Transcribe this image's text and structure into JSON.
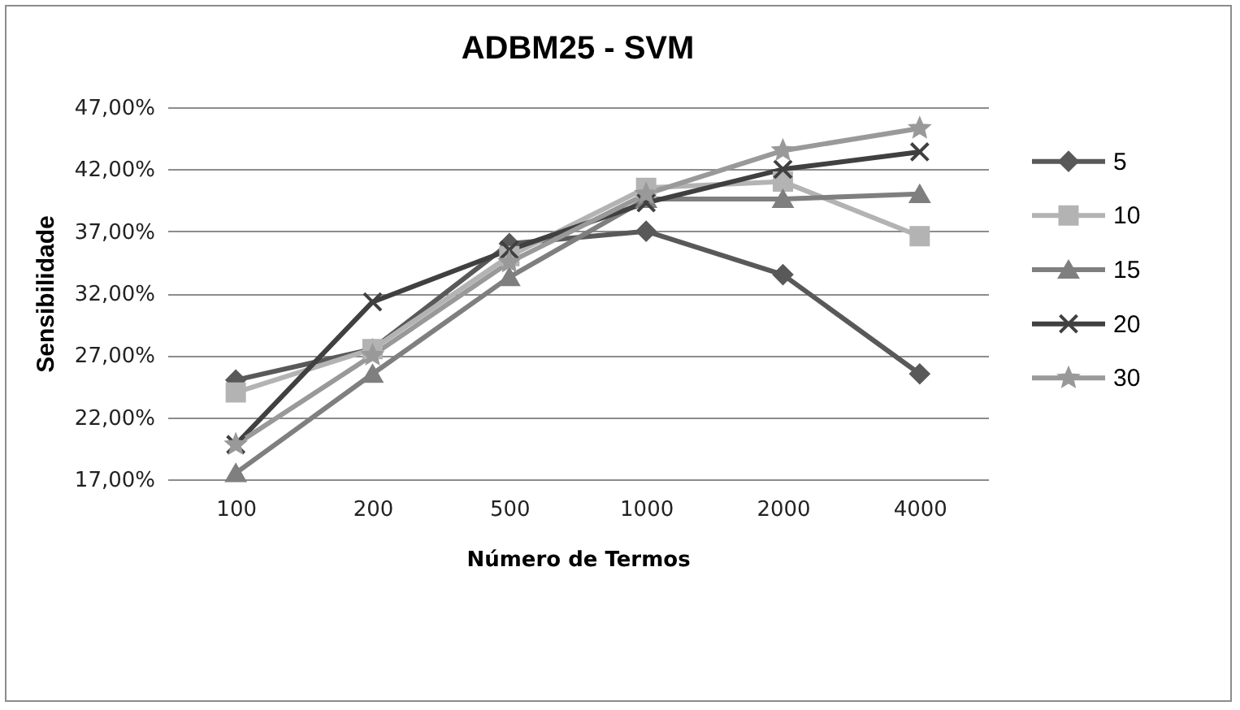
{
  "chart_data": {
    "type": "line",
    "title": "ADBM25 - SVM",
    "xlabel": "Número de Termos",
    "ylabel": "Sensibilidade",
    "categories": [
      "100",
      "200",
      "500",
      "1000",
      "2000",
      "4000"
    ],
    "series": [
      {
        "name": "5",
        "color": "#595959",
        "marker": "diamond",
        "values": [
          25.0,
          27.5,
          36.0,
          37.0,
          33.5,
          25.5
        ]
      },
      {
        "name": "10",
        "color": "#b3b3b3",
        "marker": "square",
        "values": [
          24.0,
          27.5,
          35.0,
          40.5,
          41.0,
          36.6
        ]
      },
      {
        "name": "15",
        "color": "#7f7f7f",
        "marker": "triangle",
        "values": [
          17.5,
          25.5,
          33.3,
          39.6,
          39.6,
          40.0
        ]
      },
      {
        "name": "20",
        "color": "#404040",
        "marker": "cross",
        "values": [
          19.8,
          31.3,
          35.5,
          39.3,
          42.0,
          43.4
        ]
      },
      {
        "name": "30",
        "color": "#999999",
        "marker": "star",
        "values": [
          19.8,
          27.0,
          34.5,
          40.0,
          43.5,
          45.3
        ]
      }
    ],
    "ylim": [
      17,
      47
    ],
    "yticks": [
      {
        "value": 17,
        "label": "17,00%"
      },
      {
        "value": 22,
        "label": "22,00%"
      },
      {
        "value": 27,
        "label": "27,00%"
      },
      {
        "value": 32,
        "label": "32,00%"
      },
      {
        "value": 37,
        "label": "37,00%"
      },
      {
        "value": 42,
        "label": "42,00%"
      },
      {
        "value": 47,
        "label": "47,00%"
      }
    ],
    "grid": "y",
    "legend": "right"
  }
}
